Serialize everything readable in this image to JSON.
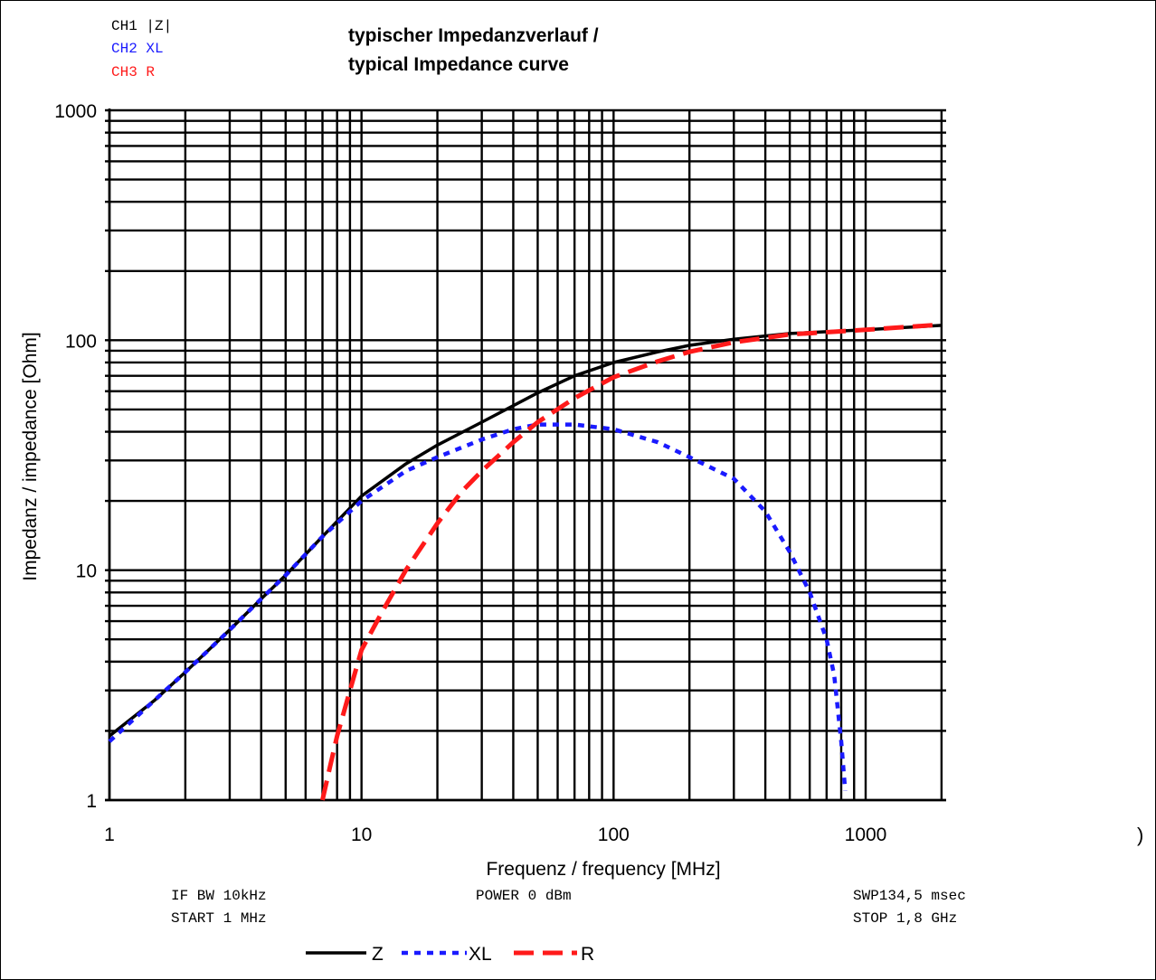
{
  "channels": [
    {
      "label": "CH1 |Z|",
      "color": "#000000"
    },
    {
      "label": "CH2 XL",
      "color": "#1a1aff"
    },
    {
      "label": "CH3 R",
      "color": "#ff1a1a"
    }
  ],
  "title_lines": [
    "typischer Impedanzverlauf /",
    "typical Impedance curve"
  ],
  "settings": {
    "if_bw": "IF BW 10kHz",
    "start": "START 1 MHz",
    "power": "POWER 0 dBm",
    "sweep": "SWP134,5 msec",
    "stop": "STOP 1,8 GHz"
  },
  "stray_mark": ")",
  "chart_data": {
    "type": "line",
    "title": "typischer Impedanzverlauf / typical Impedance curve",
    "xlabel": "Frequenz / frequency [MHz]",
    "ylabel": "Impedanz / impedance [Ohm]",
    "x_scale": "log",
    "y_scale": "log",
    "xlim": [
      1,
      2000
    ],
    "ylim": [
      1,
      1000
    ],
    "x_ticks": [
      1,
      10,
      100,
      1000
    ],
    "x_tick_labels": [
      "1",
      "10",
      "100",
      "1000"
    ],
    "y_ticks": [
      1,
      10,
      100,
      1000
    ],
    "y_tick_labels": [
      "1",
      "10",
      "100",
      "1000"
    ],
    "grid": true,
    "legend_position": "bottom-center",
    "series": [
      {
        "name": "Z",
        "color": "#000000",
        "style": "solid",
        "points": [
          [
            1,
            1.9
          ],
          [
            1.5,
            2.7
          ],
          [
            2,
            3.6
          ],
          [
            3,
            5.5
          ],
          [
            4,
            7.5
          ],
          [
            5,
            9.5
          ],
          [
            7,
            14
          ],
          [
            10,
            21
          ],
          [
            15,
            29
          ],
          [
            20,
            35
          ],
          [
            30,
            44
          ],
          [
            50,
            59
          ],
          [
            70,
            70
          ],
          [
            100,
            80
          ],
          [
            150,
            89
          ],
          [
            200,
            95
          ],
          [
            300,
            101
          ],
          [
            500,
            107
          ],
          [
            1000,
            111
          ],
          [
            2000,
            116
          ]
        ]
      },
      {
        "name": "XL",
        "color": "#1a1aff",
        "style": "dotted",
        "points": [
          [
            1,
            1.8
          ],
          [
            1.5,
            2.7
          ],
          [
            2,
            3.6
          ],
          [
            3,
            5.5
          ],
          [
            4,
            7.5
          ],
          [
            5,
            9.5
          ],
          [
            7,
            14
          ],
          [
            10,
            20
          ],
          [
            15,
            27
          ],
          [
            20,
            31
          ],
          [
            30,
            37
          ],
          [
            40,
            41
          ],
          [
            50,
            43
          ],
          [
            70,
            43
          ],
          [
            100,
            41
          ],
          [
            150,
            36
          ],
          [
            200,
            31
          ],
          [
            300,
            25
          ],
          [
            400,
            18
          ],
          [
            500,
            12
          ],
          [
            600,
            8
          ],
          [
            700,
            5
          ],
          [
            750,
            3.5
          ],
          [
            800,
            1.8
          ],
          [
            830,
            1.1
          ]
        ]
      },
      {
        "name": "R",
        "color": "#ff1a1a",
        "style": "dashed",
        "points": [
          [
            7,
            1
          ],
          [
            7.5,
            1.4
          ],
          [
            8,
            1.9
          ],
          [
            9,
            3
          ],
          [
            10,
            4.5
          ],
          [
            12,
            6.5
          ],
          [
            15,
            10
          ],
          [
            20,
            16
          ],
          [
            25,
            22
          ],
          [
            30,
            27
          ],
          [
            40,
            36
          ],
          [
            50,
            44
          ],
          [
            70,
            56
          ],
          [
            100,
            69
          ],
          [
            150,
            81
          ],
          [
            200,
            89
          ],
          [
            300,
            98
          ],
          [
            500,
            106
          ],
          [
            1000,
            111
          ],
          [
            2000,
            117
          ]
        ]
      }
    ]
  }
}
